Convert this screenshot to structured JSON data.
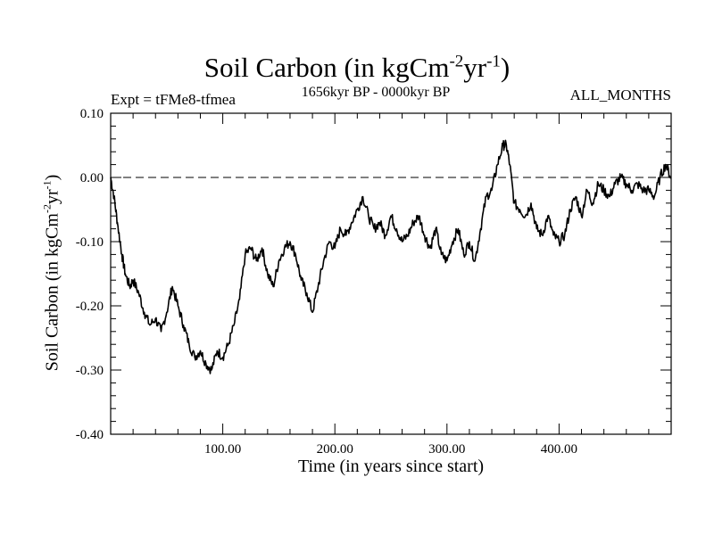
{
  "chart_data": {
    "type": "line",
    "title": {
      "main": "Soil Carbon (in kgCm",
      "exp1": "-2",
      "mid": "yr",
      "exp2": "-1",
      "end": ")"
    },
    "experiment": "Expt = tFMe8-tfmea",
    "period": "1656kyr BP - 0000kyr BP",
    "months": "ALL_MONTHS",
    "xlabel": "Time (in years since start)",
    "ylabel": {
      "main": "Soil Carbon (in kgCm",
      "exp1": "-2",
      "mid": "yr",
      "exp2": "-1",
      "end": ")"
    },
    "xlim": [
      0,
      500
    ],
    "ylim": [
      -0.4,
      0.1
    ],
    "x_ticks": [
      100,
      200,
      300,
      400
    ],
    "x_tick_labels": [
      "100.00",
      "200.00",
      "300.00",
      "400.00"
    ],
    "y_ticks": [
      0.1,
      0.0,
      -0.1,
      -0.2,
      -0.3,
      -0.4
    ],
    "y_tick_labels": [
      "0.10",
      "0.00",
      "-0.10",
      "-0.20",
      "-0.30",
      "-0.40"
    ],
    "reference_line": {
      "y": 0.0,
      "style": "dashed"
    },
    "series": [
      {
        "name": "Soil Carbon",
        "x": [
          0,
          3,
          6,
          10,
          13,
          17,
          20,
          25,
          30,
          35,
          40,
          45,
          50,
          55,
          60,
          65,
          70,
          75,
          80,
          85,
          90,
          95,
          100,
          105,
          110,
          115,
          120,
          125,
          130,
          135,
          140,
          145,
          150,
          155,
          160,
          165,
          170,
          175,
          180,
          185,
          190,
          195,
          200,
          205,
          210,
          215,
          220,
          225,
          230,
          235,
          240,
          245,
          250,
          255,
          260,
          265,
          270,
          275,
          280,
          285,
          290,
          295,
          300,
          305,
          310,
          315,
          320,
          325,
          330,
          335,
          340,
          345,
          350,
          353,
          356,
          360,
          365,
          370,
          375,
          380,
          385,
          390,
          395,
          400,
          405,
          410,
          415,
          420,
          425,
          430,
          435,
          440,
          445,
          450,
          455,
          460,
          465,
          470,
          475,
          480,
          485,
          490,
          495,
          500
        ],
        "values": [
          0.0,
          -0.03,
          -0.07,
          -0.12,
          -0.15,
          -0.17,
          -0.16,
          -0.18,
          -0.21,
          -0.23,
          -0.22,
          -0.24,
          -0.21,
          -0.17,
          -0.2,
          -0.23,
          -0.26,
          -0.28,
          -0.27,
          -0.29,
          -0.3,
          -0.27,
          -0.28,
          -0.26,
          -0.23,
          -0.19,
          -0.12,
          -0.11,
          -0.13,
          -0.11,
          -0.15,
          -0.17,
          -0.13,
          -0.11,
          -0.1,
          -0.12,
          -0.16,
          -0.18,
          -0.21,
          -0.17,
          -0.13,
          -0.1,
          -0.11,
          -0.08,
          -0.09,
          -0.07,
          -0.05,
          -0.03,
          -0.06,
          -0.08,
          -0.07,
          -0.09,
          -0.06,
          -0.08,
          -0.1,
          -0.09,
          -0.07,
          -0.06,
          -0.09,
          -0.11,
          -0.08,
          -0.12,
          -0.13,
          -0.1,
          -0.08,
          -0.12,
          -0.1,
          -0.13,
          -0.08,
          -0.03,
          -0.02,
          0.02,
          0.05,
          0.05,
          0.02,
          -0.04,
          -0.05,
          -0.06,
          -0.04,
          -0.08,
          -0.09,
          -0.06,
          -0.09,
          -0.1,
          -0.09,
          -0.05,
          -0.03,
          -0.06,
          -0.02,
          -0.04,
          -0.01,
          -0.02,
          -0.03,
          -0.01,
          0.0,
          -0.01,
          -0.02,
          -0.01,
          -0.02,
          -0.02,
          -0.03,
          0.0,
          0.02,
          0.0
        ]
      }
    ]
  }
}
